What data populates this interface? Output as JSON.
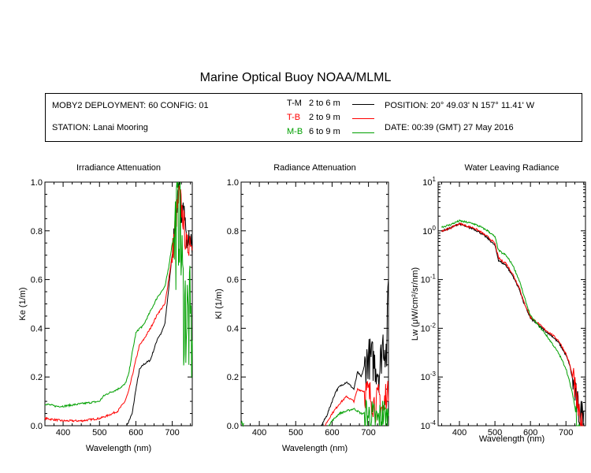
{
  "title": "Marine Optical Buoy NOAA/MLML",
  "info": {
    "deployment": "MOBY2 DEPLOYMENT: 60 CONFIG: 01",
    "station": "STATION: Lanai Mooring",
    "position": "POSITION: 20° 49.03' N   157° 11.41' W",
    "date": "DATE: 00:39 (GMT) 27 May 2016"
  },
  "legend": [
    {
      "key": "T-M",
      "range": "2 to 6  m",
      "color": "#000000"
    },
    {
      "key": "T-B",
      "range": "2 to 9  m",
      "color": "#ff0000"
    },
    {
      "key": "M-B",
      "range": "6 to 9  m",
      "color": "#00a000"
    }
  ],
  "chart_data": [
    {
      "type": "line",
      "title": "Irradiance Attenuation",
      "xlabel": "Wavelength (nm)",
      "ylabel": "Ke  (1/m)",
      "xlim": [
        350,
        755
      ],
      "ylim": [
        0,
        1.0
      ],
      "xticks": [
        "400",
        "500",
        "600",
        "700"
      ],
      "yticks": [
        "0.0",
        "0.2",
        "0.4",
        "0.6",
        "0.8",
        "1.0"
      ],
      "grid": false,
      "series": [
        {
          "name": "T-M",
          "color": "#000000",
          "noisy_from": 700,
          "noise": 0.04,
          "x": [
            575,
            590,
            600,
            610,
            620,
            640,
            660,
            670,
            680,
            690,
            700,
            710,
            715,
            720,
            725,
            730,
            740,
            750,
            755
          ],
          "y": [
            0.0,
            0.05,
            0.15,
            0.23,
            0.25,
            0.27,
            0.36,
            0.38,
            0.42,
            0.56,
            0.71,
            0.85,
            0.93,
            0.98,
            0.85,
            0.95,
            0.75,
            0.78,
            0.7
          ]
        },
        {
          "name": "T-B",
          "color": "#ff0000",
          "noisy_from": 700,
          "noise": 0.06,
          "x": [
            350,
            400,
            450,
            500,
            520,
            550,
            570,
            580,
            600,
            610,
            620,
            640,
            660,
            680,
            690,
            700,
            710,
            720,
            730,
            740,
            750,
            755
          ],
          "y": [
            0.03,
            0.02,
            0.02,
            0.03,
            0.04,
            0.06,
            0.1,
            0.14,
            0.27,
            0.33,
            0.35,
            0.4,
            0.46,
            0.5,
            0.6,
            0.7,
            0.85,
            0.95,
            0.85,
            0.72,
            0.78,
            0.72
          ]
        },
        {
          "name": "M-B",
          "color": "#00a000",
          "noisy_from": 705,
          "noise": 0.25,
          "x": [
            350,
            380,
            400,
            450,
            500,
            510,
            520,
            550,
            570,
            580,
            590,
            600,
            610,
            620,
            640,
            660,
            680,
            690,
            700,
            710,
            720,
            730,
            740,
            750,
            755
          ],
          "y": [
            0.09,
            0.08,
            0.08,
            0.09,
            0.1,
            0.12,
            0.13,
            0.15,
            0.17,
            0.21,
            0.3,
            0.38,
            0.4,
            0.41,
            0.47,
            0.53,
            0.57,
            0.65,
            0.75,
            0.8,
            0.9,
            0.5,
            0.45,
            0.4,
            0.35
          ]
        }
      ]
    },
    {
      "type": "line",
      "title": "Radiance Attenuation",
      "xlabel": "Wavelength (nm)",
      "ylabel": "Kl  (1/m)",
      "xlim": [
        350,
        755
      ],
      "ylim": [
        0,
        1.0
      ],
      "xticks": [
        "400",
        "500",
        "600",
        "700"
      ],
      "yticks": [
        "0.0",
        "0.2",
        "0.4",
        "0.6",
        "0.8",
        "1.0"
      ],
      "grid": false,
      "series": [
        {
          "name": "T-M",
          "color": "#000000",
          "noisy_from": 690,
          "noise": 0.09,
          "x": [
            570,
            585,
            600,
            610,
            620,
            640,
            660,
            670,
            680,
            690,
            700,
            710,
            720,
            730,
            740,
            750,
            755
          ],
          "y": [
            0.0,
            0.04,
            0.1,
            0.14,
            0.16,
            0.18,
            0.15,
            0.22,
            0.2,
            0.25,
            0.28,
            0.27,
            0.25,
            0.22,
            0.35,
            0.3,
            0.6
          ]
        },
        {
          "name": "T-B",
          "color": "#ff0000",
          "noisy_from": 690,
          "noise": 0.07,
          "x": [
            580,
            600,
            610,
            620,
            640,
            660,
            670,
            690,
            700,
            710,
            720,
            730,
            740,
            750,
            755
          ],
          "y": [
            0.0,
            0.05,
            0.07,
            0.09,
            0.12,
            0.1,
            0.15,
            0.14,
            0.13,
            0.11,
            0.08,
            0.12,
            0.05,
            0.15,
            0.1
          ]
        },
        {
          "name": "M-B",
          "color": "#00a000",
          "noisy_from": 690,
          "noise": 0.08,
          "x": [
            590,
            600,
            620,
            640,
            660,
            680,
            690,
            700,
            710,
            720,
            730,
            740,
            750,
            755
          ],
          "y": [
            0.0,
            0.02,
            0.05,
            0.06,
            0.07,
            0.05,
            0.05,
            0.04,
            0.03,
            0.02,
            0.02,
            0.05,
            0.02,
            0.04
          ]
        },
        {
          "name": "M-B",
          "color": "#00a000",
          "x": [
            350,
            352,
            355,
            358
          ],
          "y": [
            0.01,
            0.02,
            0.0,
            0.01
          ]
        }
      ]
    },
    {
      "type": "line",
      "title": "Water Leaving Radiance",
      "xlabel": "Wavelength (nm)",
      "ylabel": "Lw  (μW/cm²/sr/nm)",
      "xlim": [
        340,
        755
      ],
      "yscale": "log",
      "ylim": [
        0.0001,
        10
      ],
      "xticks": [
        "400",
        "500",
        "600",
        "700"
      ],
      "ytick_exponents": [
        -4,
        -3,
        -2,
        -1,
        0,
        1
      ],
      "grid": false,
      "series": [
        {
          "name": "T-M",
          "color": "#000000",
          "noisy_from": 720,
          "noise": 0.35,
          "x": [
            350,
            370,
            390,
            400,
            410,
            420,
            440,
            460,
            480,
            500,
            510,
            520,
            530,
            550,
            570,
            580,
            600,
            620,
            640,
            660,
            680,
            700,
            710,
            720,
            730,
            740,
            750
          ],
          "y": [
            1.0,
            1.1,
            1.3,
            1.4,
            1.3,
            1.2,
            1.1,
            0.9,
            0.7,
            0.5,
            0.25,
            0.22,
            0.2,
            0.12,
            0.06,
            0.035,
            0.016,
            0.012,
            0.009,
            0.007,
            0.005,
            0.0028,
            0.0018,
            0.0008,
            0.0003,
            0.00015,
            0.0002
          ]
        },
        {
          "name": "T-B",
          "color": "#ff0000",
          "noisy_from": 720,
          "noise": 0.3,
          "x": [
            350,
            370,
            390,
            400,
            410,
            420,
            440,
            460,
            480,
            500,
            510,
            520,
            530,
            550,
            570,
            580,
            600,
            620,
            640,
            660,
            680,
            700,
            710,
            720,
            730,
            740,
            750
          ],
          "y": [
            1.0,
            1.1,
            1.3,
            1.4,
            1.35,
            1.25,
            1.15,
            0.95,
            0.75,
            0.55,
            0.28,
            0.24,
            0.22,
            0.13,
            0.065,
            0.037,
            0.017,
            0.013,
            0.0095,
            0.0075,
            0.0055,
            0.003,
            0.0019,
            0.0009,
            0.00035,
            0.0001,
            0.0001
          ]
        },
        {
          "name": "M-B",
          "color": "#00a000",
          "noisy_from": 725,
          "noise": 0.3,
          "x": [
            350,
            370,
            390,
            400,
            410,
            420,
            440,
            460,
            480,
            500,
            510,
            520,
            530,
            550,
            570,
            580,
            600,
            620,
            640,
            660,
            680,
            700,
            710,
            720,
            730,
            740
          ],
          "y": [
            1.2,
            1.3,
            1.5,
            1.6,
            1.55,
            1.5,
            1.4,
            1.2,
            1.0,
            0.75,
            0.4,
            0.35,
            0.32,
            0.2,
            0.09,
            0.05,
            0.018,
            0.012,
            0.008,
            0.005,
            0.003,
            0.0015,
            0.0008,
            0.0004,
            0.00015,
            0.0001
          ]
        }
      ]
    }
  ]
}
